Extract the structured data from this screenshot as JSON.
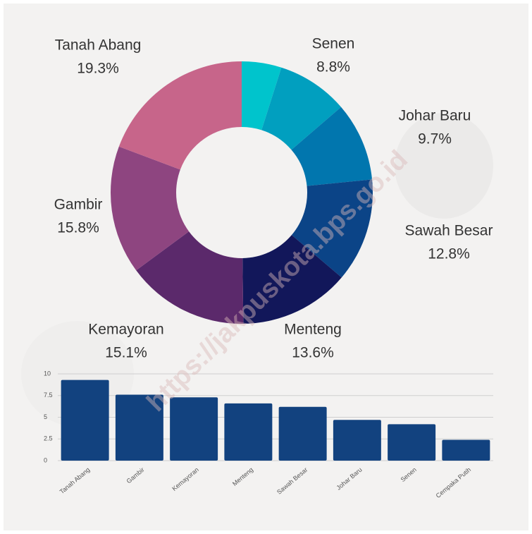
{
  "chart_data": [
    {
      "type": "donut",
      "categories": [
        null,
        "Senen",
        "Johar Baru",
        "Sawah Besar",
        "Menteng",
        "Kemayoran",
        "Gambir",
        "Tanah Abang"
      ],
      "values": [
        4.9,
        8.8,
        9.7,
        12.8,
        13.6,
        15.1,
        15.8,
        19.3
      ],
      "value_labels": [
        null,
        "8.8%",
        "9.7%",
        "12.8%",
        "13.6%",
        "15.1%",
        "15.8%",
        "19.3%"
      ],
      "colors": [
        "#00c4cc",
        "#019fbf",
        "#0176ae",
        "#0b4487",
        "#12175a",
        "#5b296b",
        "#8e4580",
        "#c7658a"
      ],
      "watermark": "https://jakpuskota.bps.go.id"
    },
    {
      "type": "bar",
      "categories": [
        "Tanah Abang",
        "Gambir",
        "Kemayoran",
        "Menteng",
        "Sawah Besar",
        "Johar Baru",
        "Senen",
        "Cempaka Putih"
      ],
      "values": [
        9.3,
        7.6,
        7.3,
        6.6,
        6.2,
        4.7,
        4.2,
        2.4
      ],
      "color": "#12427f",
      "ylim": [
        0,
        10
      ],
      "yticks": [
        0,
        2.5,
        5,
        7.5,
        10
      ],
      "grid": true
    }
  ]
}
